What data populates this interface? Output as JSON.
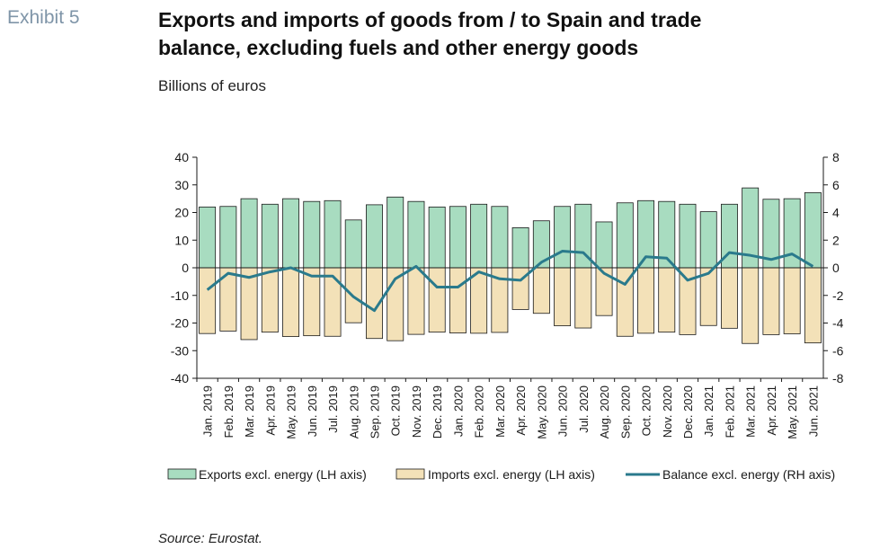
{
  "header": {
    "exhibit": "Exhibit 5",
    "title_line1": "Exports and imports of goods from / to Spain and trade",
    "title_line2": "balance, excluding fuels and other energy goods",
    "subtitle": "Billions of euros"
  },
  "footer": {
    "source": "Source: Eurostat."
  },
  "chart_data": {
    "type": "bar",
    "categories": [
      "Jan. 2019",
      "Feb. 2019",
      "Mar. 2019",
      "Apr. 2019",
      "May. 2019",
      "Jun. 2019",
      "Jul. 2019",
      "Aug. 2019",
      "Sep. 2019",
      "Oct. 2019",
      "Nov. 2019",
      "Dec. 2019",
      "Jan. 2020",
      "Feb. 2020",
      "Mar. 2020",
      "Apr. 2020",
      "May. 2020",
      "Jun. 2020",
      "Jul. 2020",
      "Aug. 2020",
      "Sep. 2020",
      "Oct. 2020",
      "Nov. 2020",
      "Dec. 2020",
      "Jan. 2021",
      "Feb. 2021",
      "Mar. 2021",
      "Apr. 2021",
      "May. 2021",
      "Jun. 2021"
    ],
    "series": [
      {
        "name": "Exports excl. energy (LH axis)",
        "type": "bar",
        "axis": "left",
        "color": "#a8dcc0",
        "values": [
          22.0,
          22.2,
          25.0,
          23.0,
          25.0,
          24.0,
          24.3,
          17.3,
          22.8,
          25.6,
          24.0,
          22.0,
          22.2,
          23.0,
          22.2,
          14.5,
          17.0,
          22.2,
          23.0,
          16.6,
          23.5,
          24.3,
          24.0,
          23.0,
          20.3,
          23.0,
          28.9,
          24.8,
          25.0,
          27.2
        ]
      },
      {
        "name": "Imports excl. energy  (LH axis)",
        "type": "bar",
        "axis": "left",
        "color": "#f3e1b8",
        "values": [
          -23.8,
          -22.9,
          -26.0,
          -23.3,
          -24.9,
          -24.6,
          -24.8,
          -19.9,
          -25.6,
          -26.4,
          -24.1,
          -23.3,
          -23.6,
          -23.7,
          -23.4,
          -15.1,
          -16.5,
          -21.0,
          -21.8,
          -17.3,
          -24.8,
          -23.7,
          -23.3,
          -24.2,
          -20.9,
          -21.9,
          -27.4,
          -24.2,
          -23.9,
          -27.2
        ]
      },
      {
        "name": "Balance excl. energy  (RH axis)",
        "type": "line",
        "axis": "right",
        "color": "#2a7a8c",
        "values": [
          -1.6,
          -0.4,
          -0.7,
          -0.3,
          -0.0,
          -0.6,
          -0.6,
          -2.1,
          -3.1,
          -0.8,
          0.1,
          -1.4,
          -1.4,
          -0.3,
          -0.8,
          -0.9,
          0.4,
          1.2,
          1.1,
          -0.4,
          -1.2,
          0.8,
          0.7,
          -0.9,
          -0.4,
          1.1,
          0.9,
          0.6,
          1.0,
          0.1
        ]
      }
    ],
    "y_left": {
      "min": -40,
      "max": 40,
      "ticks": [
        "40",
        "30",
        "20",
        "10",
        "0",
        "-10",
        "-20",
        "-30",
        "-40"
      ]
    },
    "y_right": {
      "min": -8,
      "max": 8,
      "ticks": [
        "8",
        "6",
        "4",
        "2",
        "0",
        "-2",
        "-4",
        "-6",
        "-8"
      ]
    },
    "grid": false,
    "legend_position": "bottom"
  }
}
